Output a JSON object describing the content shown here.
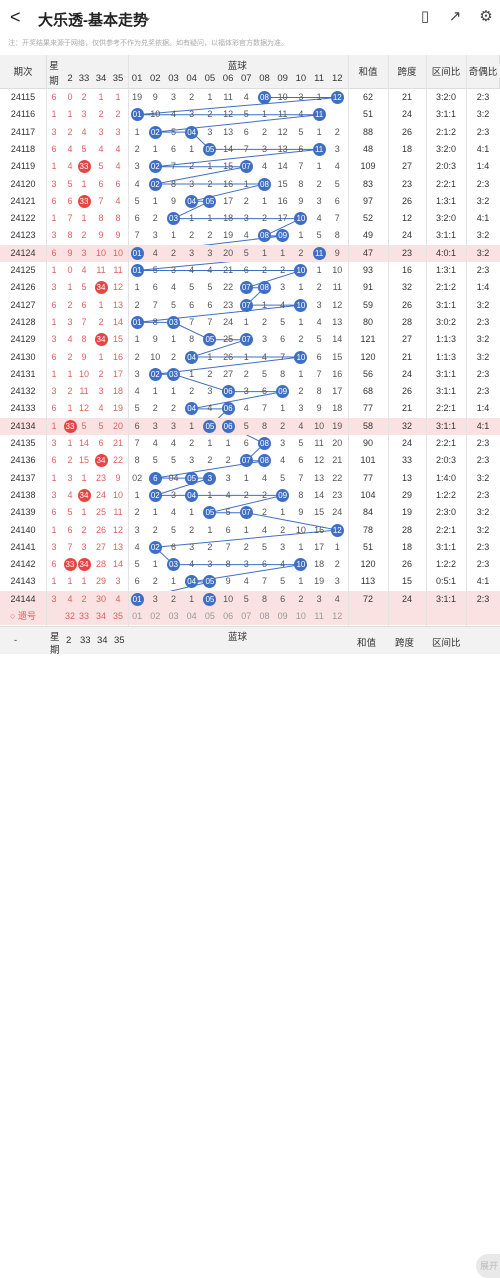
{
  "app": {
    "back": "<",
    "title": "大乐透-基本走势",
    "notice": "注：开奖结果来源于网络，仅供参考不作为兑奖依据。如有疑问，以福体彩官方数据为准。"
  },
  "icons": [
    "back-icon",
    "chevron-down-icon",
    "chart-icon",
    "share-icon",
    "settings-icon"
  ],
  "headers": {
    "issue": "期次",
    "red_short": [
      "星",
      "期"
    ],
    "reds": [
      "2",
      "33",
      "34",
      "35"
    ],
    "blue": "蓝球",
    "blues": [
      "01",
      "02",
      "03",
      "04",
      "05",
      "06",
      "07",
      "08",
      "09",
      "10",
      "11",
      "12"
    ],
    "sum": "和值",
    "span": "跨度",
    "interval": "区间比",
    "parity": "奇偶比"
  },
  "rows": [
    {
      "issue": "24115",
      "r": [
        "6",
        "0",
        "2",
        "1",
        "1"
      ],
      "b": [
        "19",
        "9",
        "3",
        "2",
        "1",
        "11",
        "4",
        "08",
        "10",
        "3",
        "1",
        "12"
      ],
      "blue_hits": [
        8,
        12
      ],
      "sum": "62",
      "span": "21",
      "interval": "3:2:0",
      "parity": "2:3",
      "pink": false
    },
    {
      "issue": "24116",
      "r": [
        "1",
        "1",
        "3",
        "2",
        "2"
      ],
      "b": [
        "01",
        "10",
        "4",
        "3",
        "2",
        "12",
        "5",
        "1",
        "11",
        "4",
        "11",
        ""
      ],
      "blue_hits": [
        1,
        11
      ],
      "sum": "51",
      "span": "24",
      "interval": "3:1:1",
      "parity": "3:2",
      "pink": false
    },
    {
      "issue": "24117",
      "r": [
        "3",
        "2",
        "4",
        "3",
        "3"
      ],
      "b": [
        "1",
        "02",
        "5",
        "04",
        "3",
        "13",
        "6",
        "2",
        "12",
        "5",
        "1",
        "2"
      ],
      "blue_hits": [
        2,
        4
      ],
      "sum": "88",
      "span": "26",
      "interval": "2:1:2",
      "parity": "2:3",
      "pink": false
    },
    {
      "issue": "24118",
      "r": [
        "6",
        "4",
        "5",
        "4",
        "4"
      ],
      "b": [
        "2",
        "1",
        "6",
        "1",
        "05",
        "14",
        "7",
        "3",
        "13",
        "6",
        "11",
        "3"
      ],
      "blue_hits": [
        5,
        11
      ],
      "sum": "48",
      "span": "18",
      "interval": "3:2:0",
      "parity": "4:1",
      "pink": false
    },
    {
      "issue": "24119",
      "r": [
        "1",
        "4",
        "33",
        "5",
        "4"
      ],
      "b": [
        "3",
        "02",
        "7",
        "2",
        "1",
        "15",
        "07",
        "4",
        "14",
        "7",
        "1",
        "4"
      ],
      "blue_hits": [
        2,
        7
      ],
      "sum": "109",
      "span": "27",
      "interval": "2:0:3",
      "parity": "1:4",
      "pink": false
    },
    {
      "issue": "24120",
      "r": [
        "3",
        "5",
        "1",
        "6",
        "6"
      ],
      "b": [
        "4",
        "02",
        "8",
        "3",
        "2",
        "16",
        "1",
        "08",
        "15",
        "8",
        "2",
        "5"
      ],
      "blue_hits": [
        2,
        8
      ],
      "sum": "83",
      "span": "23",
      "interval": "2:2:1",
      "parity": "2:3",
      "pink": false
    },
    {
      "issue": "24121",
      "r": [
        "6",
        "6",
        "33",
        "7",
        "4"
      ],
      "b": [
        "5",
        "1",
        "9",
        "04",
        "05",
        "17",
        "2",
        "1",
        "16",
        "9",
        "3",
        "6"
      ],
      "blue_hits": [
        4,
        5
      ],
      "sum": "97",
      "span": "26",
      "interval": "1:3:1",
      "parity": "3:2",
      "pink": false
    },
    {
      "issue": "24122",
      "r": [
        "1",
        "7",
        "1",
        "8",
        "8"
      ],
      "b": [
        "6",
        "2",
        "03",
        "1",
        "1",
        "18",
        "3",
        "2",
        "17",
        "10",
        "4",
        "7"
      ],
      "blue_hits": [
        3,
        10
      ],
      "sum": "52",
      "span": "12",
      "interval": "3:2:0",
      "parity": "4:1",
      "pink": false
    },
    {
      "issue": "24123",
      "r": [
        "3",
        "8",
        "2",
        "9",
        "9"
      ],
      "b": [
        "7",
        "3",
        "1",
        "2",
        "2",
        "19",
        "4",
        "08",
        "09",
        "1",
        "5",
        "8"
      ],
      "blue_hits": [
        8,
        9
      ],
      "sum": "49",
      "span": "24",
      "interval": "3:1:1",
      "parity": "3:2",
      "pink": false
    },
    {
      "issue": "24124",
      "r": [
        "6",
        "9",
        "3",
        "10",
        "10"
      ],
      "b": [
        "01",
        "4",
        "2",
        "3",
        "3",
        "20",
        "5",
        "1",
        "1",
        "2",
        "11",
        "9"
      ],
      "blue_hits": [
        1,
        11
      ],
      "sum": "47",
      "span": "23",
      "interval": "4:0:1",
      "parity": "3:2",
      "pink": true
    },
    {
      "issue": "24125",
      "r": [
        "1",
        "0",
        "4",
        "11",
        "11"
      ],
      "b": [
        "01",
        "5",
        "3",
        "4",
        "4",
        "21",
        "6",
        "2",
        "2",
        "10",
        "1",
        "10"
      ],
      "blue_hits": [
        1,
        10
      ],
      "sum": "93",
      "span": "16",
      "interval": "1:3:1",
      "parity": "2:3",
      "pink": false
    },
    {
      "issue": "24126",
      "r": [
        "3",
        "1",
        "5",
        "34",
        "12"
      ],
      "b": [
        "1",
        "6",
        "4",
        "5",
        "5",
        "22",
        "07",
        "08",
        "3",
        "1",
        "2",
        "11"
      ],
      "blue_hits": [
        7,
        8
      ],
      "sum": "91",
      "span": "32",
      "interval": "2:1:2",
      "parity": "1:4",
      "pink": false
    },
    {
      "issue": "24127",
      "r": [
        "6",
        "2",
        "6",
        "1",
        "13"
      ],
      "b": [
        "2",
        "7",
        "5",
        "6",
        "6",
        "23",
        "07",
        "1",
        "4",
        "10",
        "3",
        "12"
      ],
      "blue_hits": [
        7,
        10
      ],
      "sum": "59",
      "span": "26",
      "interval": "3:1:1",
      "parity": "3:2",
      "pink": false
    },
    {
      "issue": "24128",
      "r": [
        "1",
        "3",
        "7",
        "2",
        "14"
      ],
      "b": [
        "01",
        "8",
        "03",
        "7",
        "7",
        "24",
        "1",
        "2",
        "5",
        "1",
        "4",
        "13"
      ],
      "blue_hits": [
        1,
        3
      ],
      "sum": "80",
      "span": "28",
      "interval": "3:0:2",
      "parity": "2:3",
      "pink": false
    },
    {
      "issue": "24129",
      "r": [
        "3",
        "4",
        "8",
        "34",
        "15"
      ],
      "b": [
        "1",
        "9",
        "1",
        "8",
        "05",
        "25",
        "07",
        "3",
        "6",
        "2",
        "5",
        "14"
      ],
      "blue_hits": [
        5,
        7
      ],
      "sum": "121",
      "span": "27",
      "interval": "1:1:3",
      "parity": "3:2",
      "pink": false
    },
    {
      "issue": "24130",
      "r": [
        "6",
        "2",
        "9",
        "1",
        "16"
      ],
      "b": [
        "2",
        "10",
        "2",
        "04",
        "1",
        "26",
        "1",
        "4",
        "7",
        "10",
        "6",
        "15"
      ],
      "blue_hits": [
        4,
        10
      ],
      "sum": "120",
      "span": "21",
      "interval": "1:1:3",
      "parity": "3:2",
      "pink": false
    },
    {
      "issue": "24131",
      "r": [
        "1",
        "1",
        "10",
        "2",
        "17"
      ],
      "b": [
        "3",
        "02",
        "03",
        "1",
        "2",
        "27",
        "2",
        "5",
        "8",
        "1",
        "7",
        "16"
      ],
      "blue_hits": [
        2,
        3
      ],
      "sum": "56",
      "span": "24",
      "interval": "3:1:1",
      "parity": "2:3",
      "pink": false
    },
    {
      "issue": "24132",
      "r": [
        "3",
        "2",
        "11",
        "3",
        "18"
      ],
      "b": [
        "4",
        "1",
        "1",
        "2",
        "3",
        "06",
        "3",
        "6",
        "09",
        "2",
        "8",
        "17"
      ],
      "blue_hits": [
        6,
        9
      ],
      "sum": "68",
      "span": "26",
      "interval": "3:1:1",
      "parity": "2:3",
      "pink": false
    },
    {
      "issue": "24133",
      "r": [
        "6",
        "1",
        "12",
        "4",
        "19"
      ],
      "b": [
        "5",
        "2",
        "2",
        "04",
        "4",
        "06",
        "4",
        "7",
        "1",
        "3",
        "9",
        "18"
      ],
      "blue_hits": [
        4,
        6
      ],
      "sum": "77",
      "span": "21",
      "interval": "2:2:1",
      "parity": "1:4",
      "pink": false
    },
    {
      "issue": "24134",
      "r": [
        "1",
        "33",
        "5",
        "5",
        "20"
      ],
      "b": [
        "6",
        "3",
        "3",
        "1",
        "05",
        "06",
        "5",
        "8",
        "2",
        "4",
        "10",
        "19"
      ],
      "blue_hits": [
        5,
        6
      ],
      "sum": "58",
      "span": "32",
      "interval": "3:1:1",
      "parity": "4:1",
      "pink": true
    },
    {
      "issue": "24135",
      "r": [
        "3",
        "1",
        "14",
        "6",
        "21"
      ],
      "b": [
        "7",
        "4",
        "4",
        "2",
        "1",
        "1",
        "6",
        "08",
        "3",
        "5",
        "11",
        "20"
      ],
      "blue_hits": [
        8
      ],
      "sum": "90",
      "span": "24",
      "interval": "2:2:1",
      "parity": "2:3",
      "pink": false
    },
    {
      "issue": "24136",
      "r": [
        "6",
        "2",
        "15",
        "34",
        "22"
      ],
      "b": [
        "8",
        "5",
        "5",
        "3",
        "2",
        "2",
        "07",
        "08",
        "4",
        "6",
        "12",
        "21"
      ],
      "blue_hits": [
        7,
        8
      ],
      "sum": "101",
      "span": "33",
      "interval": "2:0:3",
      "parity": "2:3",
      "pink": false
    },
    {
      "issue": "24137",
      "r": [
        "1",
        "3",
        "1",
        "23",
        "9"
      ],
      "b": [
        "02",
        "6",
        "04",
        "05",
        "3",
        "3",
        "1",
        "4",
        "5",
        "7",
        "13",
        "22"
      ],
      "blue_hits": [
        2,
        4,
        5
      ],
      "sum": "77",
      "span": "13",
      "interval": "1:4:0",
      "parity": "3:2",
      "pink": false
    },
    {
      "issue": "24138",
      "r": [
        "3",
        "4",
        "34",
        "24",
        "10"
      ],
      "b": [
        "1",
        "02",
        "3",
        "04",
        "1",
        "4",
        "2",
        "2",
        "09",
        "8",
        "14",
        "23"
      ],
      "blue_hits": [
        2,
        4,
        9
      ],
      "sum": "104",
      "span": "29",
      "interval": "1:2:2",
      "parity": "2:3",
      "pink": false
    },
    {
      "issue": "24139",
      "r": [
        "6",
        "5",
        "1",
        "25",
        "11"
      ],
      "b": [
        "2",
        "1",
        "4",
        "1",
        "05",
        "5",
        "07",
        "2",
        "1",
        "9",
        "15",
        "24"
      ],
      "blue_hits": [
        5,
        7
      ],
      "sum": "84",
      "span": "19",
      "interval": "2:3:0",
      "parity": "3:2",
      "pink": false
    },
    {
      "issue": "24140",
      "r": [
        "1",
        "6",
        "2",
        "26",
        "12"
      ],
      "b": [
        "3",
        "2",
        "5",
        "2",
        "1",
        "6",
        "1",
        "4",
        "2",
        "10",
        "16",
        "12"
      ],
      "blue_hits": [
        12
      ],
      "sum": "78",
      "span": "28",
      "interval": "2:2:1",
      "parity": "3:2",
      "pink": false
    },
    {
      "issue": "24141",
      "r": [
        "3",
        "7",
        "3",
        "27",
        "13"
      ],
      "b": [
        "4",
        "02",
        "6",
        "3",
        "2",
        "7",
        "2",
        "5",
        "3",
        "1",
        "17",
        "1"
      ],
      "blue_hits": [
        2
      ],
      "sum": "51",
      "span": "18",
      "interval": "3:1:1",
      "parity": "2:3",
      "pink": false
    },
    {
      "issue": "24142",
      "r": [
        "6",
        "33",
        "34",
        "28",
        "14"
      ],
      "b": [
        "5",
        "1",
        "03",
        "4",
        "3",
        "8",
        "3",
        "6",
        "4",
        "10",
        "18",
        "2"
      ],
      "blue_hits": [
        3,
        10
      ],
      "sum": "120",
      "span": "26",
      "interval": "1:2:2",
      "parity": "2:3",
      "pink": false
    },
    {
      "issue": "24143",
      "r": [
        "1",
        "1",
        "1",
        "29",
        "3"
      ],
      "b": [
        "6",
        "2",
        "1",
        "04",
        "05",
        "9",
        "4",
        "7",
        "5",
        "1",
        "19",
        "3"
      ],
      "blue_hits": [
        4,
        5
      ],
      "sum": "113",
      "span": "15",
      "interval": "0:5:1",
      "parity": "4:1",
      "pink": false
    },
    {
      "issue": "24144",
      "r": [
        "3",
        "4",
        "2",
        "30",
        "4"
      ],
      "b": [
        "01",
        "3",
        "2",
        "1",
        "05",
        "10",
        "5",
        "8",
        "6",
        "2",
        "3",
        "4"
      ],
      "blue_hits": [
        1,
        5
      ],
      "sum": "72",
      "span": "24",
      "interval": "3:1:1",
      "parity": "2:3",
      "pink": true
    }
  ],
  "footer_row": {
    "label": "遗号",
    "r": [
      "32",
      "33",
      "34",
      "35"
    ],
    "b": [
      "01",
      "02",
      "03",
      "04",
      "05",
      "06",
      "07",
      "08",
      "09",
      "10",
      "11",
      "12"
    ]
  },
  "bottom": {
    "dash": "-",
    "red": [
      "星",
      "期"
    ],
    "reds": [
      "2",
      "33",
      "34",
      "35"
    ],
    "blue": "蓝球",
    "sum": "和值",
    "span": "跨度",
    "interval": "区间比",
    "parity": "奇偶比",
    "fab": "展开"
  },
  "colors": {
    "red": "#e54545",
    "blue": "#3f6fc4",
    "pink": "#fbe2e2"
  }
}
